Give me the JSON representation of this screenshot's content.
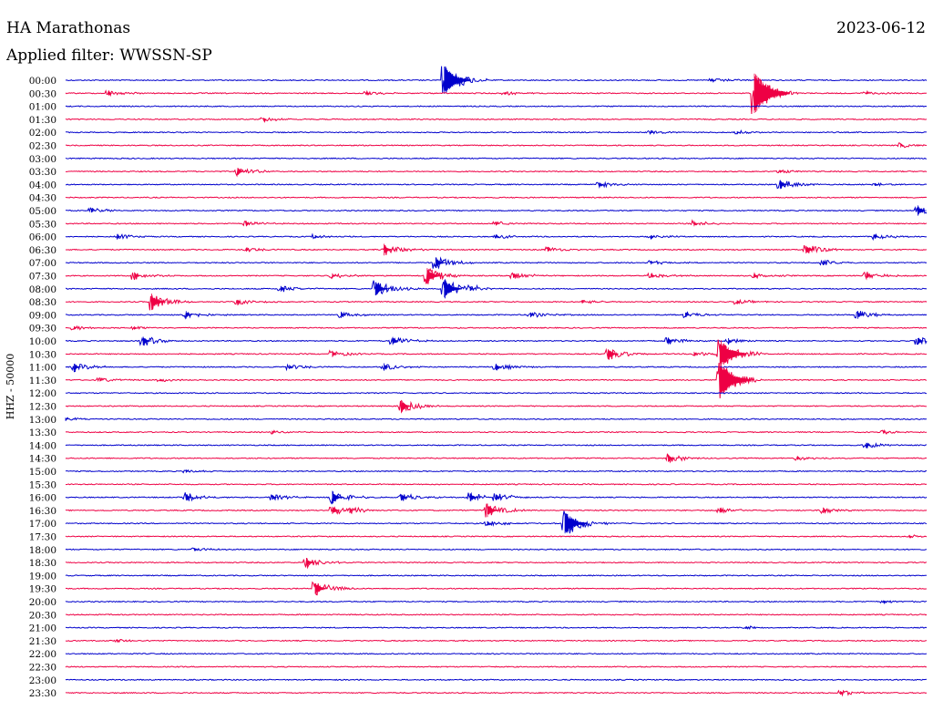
{
  "header": {
    "station": "HA Marathonas",
    "date": "2023-06-12",
    "filter": "Applied filter: WWSSN-SP"
  },
  "chart_data": {
    "type": "helicorder",
    "station": "HA Marathonas",
    "date": "2023-06-12",
    "filter": "WWSSN-SP",
    "ylabel": "HHZ - 50000",
    "row_interval_minutes": 30,
    "trace_colors": [
      "#0000cc",
      "#ee0044"
    ],
    "rows": [
      {
        "time": "00:00",
        "color": "blue",
        "events": [
          {
            "t": 0.44,
            "amp": 3.0
          },
          {
            "t": 0.75,
            "amp": 0.4
          }
        ]
      },
      {
        "time": "00:30",
        "color": "red",
        "events": [
          {
            "t": 0.05,
            "amp": 0.5
          },
          {
            "t": 0.35,
            "amp": 0.4
          },
          {
            "t": 0.51,
            "amp": 0.3
          },
          {
            "t": 0.8,
            "amp": 4.0
          },
          {
            "t": 0.93,
            "amp": 0.3
          }
        ]
      },
      {
        "time": "01:00",
        "color": "blue",
        "events": []
      },
      {
        "time": "01:30",
        "color": "red",
        "events": [
          {
            "t": 0.23,
            "amp": 0.4
          }
        ]
      },
      {
        "time": "02:00",
        "color": "blue",
        "events": [
          {
            "t": 0.68,
            "amp": 0.3
          },
          {
            "t": 0.78,
            "amp": 0.3
          }
        ]
      },
      {
        "time": "02:30",
        "color": "red",
        "events": [
          {
            "t": 0.97,
            "amp": 0.4
          }
        ]
      },
      {
        "time": "03:00",
        "color": "blue",
        "events": []
      },
      {
        "time": "03:30",
        "color": "red",
        "events": [
          {
            "t": 0.2,
            "amp": 0.8
          },
          {
            "t": 0.83,
            "amp": 0.3
          }
        ]
      },
      {
        "time": "04:00",
        "color": "blue",
        "events": [
          {
            "t": 0.62,
            "amp": 0.5
          },
          {
            "t": 0.83,
            "amp": 0.9
          },
          {
            "t": 0.94,
            "amp": 0.4
          }
        ]
      },
      {
        "time": "04:30",
        "color": "red",
        "events": []
      },
      {
        "time": "05:00",
        "color": "blue",
        "events": [
          {
            "t": 0.03,
            "amp": 0.5
          },
          {
            "t": 0.99,
            "amp": 1.0
          }
        ]
      },
      {
        "time": "05:30",
        "color": "red",
        "events": [
          {
            "t": 0.21,
            "amp": 0.5
          },
          {
            "t": 0.5,
            "amp": 0.4
          },
          {
            "t": 0.73,
            "amp": 0.5
          }
        ]
      },
      {
        "time": "06:00",
        "color": "blue",
        "events": [
          {
            "t": 0.06,
            "amp": 0.5
          },
          {
            "t": 0.29,
            "amp": 0.4
          },
          {
            "t": 0.5,
            "amp": 0.4
          },
          {
            "t": 0.68,
            "amp": 0.4
          },
          {
            "t": 0.94,
            "amp": 0.5
          }
        ]
      },
      {
        "time": "06:30",
        "color": "red",
        "events": [
          {
            "t": 0.21,
            "amp": 0.4
          },
          {
            "t": 0.37,
            "amp": 1.1
          },
          {
            "t": 0.56,
            "amp": 0.5
          },
          {
            "t": 0.86,
            "amp": 1.0
          }
        ]
      },
      {
        "time": "07:00",
        "color": "blue",
        "events": [
          {
            "t": 0.43,
            "amp": 1.2
          },
          {
            "t": 0.68,
            "amp": 0.4
          },
          {
            "t": 0.88,
            "amp": 0.5
          }
        ]
      },
      {
        "time": "07:30",
        "color": "red",
        "events": [
          {
            "t": 0.08,
            "amp": 0.7
          },
          {
            "t": 0.31,
            "amp": 0.5
          },
          {
            "t": 0.42,
            "amp": 1.6
          },
          {
            "t": 0.52,
            "amp": 0.6
          },
          {
            "t": 0.68,
            "amp": 0.5
          },
          {
            "t": 0.8,
            "amp": 0.5
          },
          {
            "t": 0.93,
            "amp": 0.7
          }
        ]
      },
      {
        "time": "08:00",
        "color": "blue",
        "events": [
          {
            "t": 0.25,
            "amp": 0.6
          },
          {
            "t": 0.36,
            "amp": 1.5
          },
          {
            "t": 0.44,
            "amp": 2.0
          },
          {
            "t": 0.47,
            "amp": 0.5
          }
        ]
      },
      {
        "time": "08:30",
        "color": "red",
        "events": [
          {
            "t": 0.1,
            "amp": 1.6
          },
          {
            "t": 0.2,
            "amp": 0.5
          },
          {
            "t": 0.6,
            "amp": 0.4
          },
          {
            "t": 0.78,
            "amp": 0.4
          }
        ]
      },
      {
        "time": "09:00",
        "color": "blue",
        "events": [
          {
            "t": 0.14,
            "amp": 0.7
          },
          {
            "t": 0.32,
            "amp": 0.6
          },
          {
            "t": 0.54,
            "amp": 0.5
          },
          {
            "t": 0.72,
            "amp": 0.6
          },
          {
            "t": 0.92,
            "amp": 0.8
          }
        ]
      },
      {
        "time": "09:30",
        "color": "red",
        "events": [
          {
            "t": 0.01,
            "amp": 0.4
          },
          {
            "t": 0.08,
            "amp": 0.3
          }
        ]
      },
      {
        "time": "10:00",
        "color": "blue",
        "events": [
          {
            "t": 0.09,
            "amp": 1.0
          },
          {
            "t": 0.38,
            "amp": 0.8
          },
          {
            "t": 0.7,
            "amp": 0.7
          },
          {
            "t": 0.77,
            "amp": 0.5
          },
          {
            "t": 0.99,
            "amp": 0.8
          }
        ]
      },
      {
        "time": "10:30",
        "color": "red",
        "events": [
          {
            "t": 0.31,
            "amp": 0.6
          },
          {
            "t": 0.63,
            "amp": 1.2
          },
          {
            "t": 0.73,
            "amp": 0.5
          },
          {
            "t": 0.76,
            "amp": 3.0
          }
        ]
      },
      {
        "time": "11:00",
        "color": "blue",
        "events": [
          {
            "t": 0.01,
            "amp": 0.8
          },
          {
            "t": 0.26,
            "amp": 0.5
          },
          {
            "t": 0.37,
            "amp": 0.7
          },
          {
            "t": 0.5,
            "amp": 0.6
          }
        ]
      },
      {
        "time": "11:30",
        "color": "red",
        "events": [
          {
            "t": 0.04,
            "amp": 0.4
          },
          {
            "t": 0.11,
            "amp": 0.3
          },
          {
            "t": 0.76,
            "amp": 3.5
          }
        ]
      },
      {
        "time": "12:00",
        "color": "blue",
        "events": []
      },
      {
        "time": "12:30",
        "color": "red",
        "events": [
          {
            "t": 0.39,
            "amp": 1.2
          }
        ]
      },
      {
        "time": "13:00",
        "color": "blue",
        "events": [
          {
            "t": 0.0,
            "amp": 0.3
          }
        ]
      },
      {
        "time": "13:30",
        "color": "red",
        "events": [
          {
            "t": 0.24,
            "amp": 0.3
          },
          {
            "t": 0.95,
            "amp": 0.3
          }
        ]
      },
      {
        "time": "14:00",
        "color": "blue",
        "events": [
          {
            "t": 0.93,
            "amp": 0.6
          }
        ]
      },
      {
        "time": "14:30",
        "color": "red",
        "events": [
          {
            "t": 0.7,
            "amp": 0.8
          },
          {
            "t": 0.85,
            "amp": 0.4
          }
        ]
      },
      {
        "time": "15:00",
        "color": "blue",
        "events": [
          {
            "t": 0.14,
            "amp": 0.3
          }
        ]
      },
      {
        "time": "15:30",
        "color": "red",
        "events": []
      },
      {
        "time": "16:00",
        "color": "blue",
        "events": [
          {
            "t": 0.14,
            "amp": 0.8
          },
          {
            "t": 0.24,
            "amp": 0.6
          },
          {
            "t": 0.31,
            "amp": 1.3
          },
          {
            "t": 0.39,
            "amp": 0.8
          },
          {
            "t": 0.47,
            "amp": 0.9
          },
          {
            "t": 0.5,
            "amp": 0.7
          }
        ]
      },
      {
        "time": "16:30",
        "color": "red",
        "events": [
          {
            "t": 0.31,
            "amp": 0.9
          },
          {
            "t": 0.33,
            "amp": 0.6
          },
          {
            "t": 0.49,
            "amp": 1.3
          },
          {
            "t": 0.76,
            "amp": 0.6
          },
          {
            "t": 0.88,
            "amp": 0.6
          }
        ]
      },
      {
        "time": "17:00",
        "color": "blue",
        "events": [
          {
            "t": 0.49,
            "amp": 0.5
          },
          {
            "t": 0.58,
            "amp": 2.5
          }
        ]
      },
      {
        "time": "17:30",
        "color": "red",
        "events": [
          {
            "t": 0.98,
            "amp": 0.3
          }
        ]
      },
      {
        "time": "18:00",
        "color": "blue",
        "events": [
          {
            "t": 0.15,
            "amp": 0.3
          }
        ]
      },
      {
        "time": "18:30",
        "color": "red",
        "events": [
          {
            "t": 0.28,
            "amp": 0.9
          }
        ]
      },
      {
        "time": "19:00",
        "color": "blue",
        "events": []
      },
      {
        "time": "19:30",
        "color": "red",
        "events": [
          {
            "t": 0.29,
            "amp": 1.4
          }
        ]
      },
      {
        "time": "20:00",
        "color": "blue",
        "events": [
          {
            "t": 0.95,
            "amp": 0.3
          }
        ]
      },
      {
        "time": "20:30",
        "color": "red",
        "events": []
      },
      {
        "time": "21:00",
        "color": "blue",
        "events": [
          {
            "t": 0.79,
            "amp": 0.3
          }
        ]
      },
      {
        "time": "21:30",
        "color": "red",
        "events": [
          {
            "t": 0.06,
            "amp": 0.3
          }
        ]
      },
      {
        "time": "22:00",
        "color": "blue",
        "events": []
      },
      {
        "time": "22:30",
        "color": "red",
        "events": []
      },
      {
        "time": "23:00",
        "color": "blue",
        "events": []
      },
      {
        "time": "23:30",
        "color": "red",
        "events": [
          {
            "t": 0.9,
            "amp": 0.5
          }
        ]
      }
    ]
  }
}
